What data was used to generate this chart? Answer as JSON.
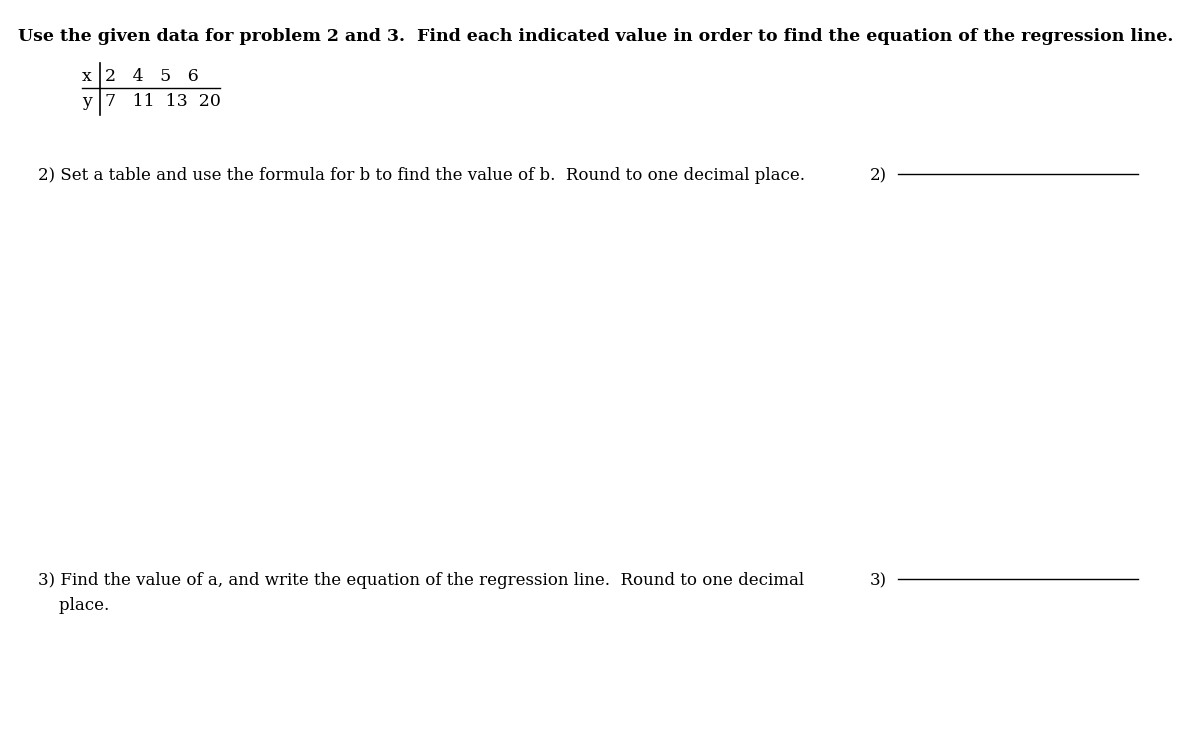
{
  "background_color": "#ffffff",
  "title_text": "Use the given data for problem 2 and 3.  Find each indicated value in order to find the equation of the regression line.",
  "title_fontsize": 12.5,
  "title_fontweight": "bold",
  "q2_text": "2) Set a table and use the formula for b to find the value of b.  Round to one decimal place.",
  "q2_fontsize": 12.0,
  "q2_label": "2)",
  "q3_text_line1": "3) Find the value of a, and write the equation of the regression line.  Round to one decimal",
  "q3_text_line2": "    place.",
  "q3_fontsize": 12.0,
  "q3_label": "3)",
  "font_family": "DejaVu Serif",
  "fig_width": 12.0,
  "fig_height": 7.32,
  "dpi": 100
}
